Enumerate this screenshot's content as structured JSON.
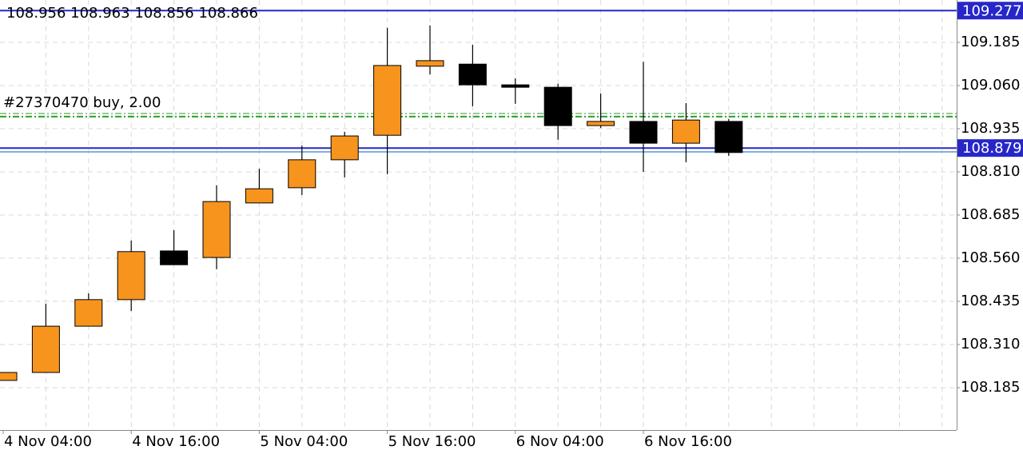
{
  "chart_data": {
    "type": "candlestick",
    "ohlc_label": "108.956 108.963 108.856 108.866",
    "categories": [
      "4 Nov 04:00",
      null,
      null,
      "4 Nov 16:00",
      null,
      null,
      "5 Nov 04:00",
      null,
      null,
      "5 Nov 16:00",
      null,
      null,
      "6 Nov 04:00",
      null,
      null,
      "6 Nov 16:00",
      null,
      null
    ],
    "open": [
      108.206,
      108.229,
      108.363,
      108.44,
      108.581,
      108.562,
      108.72,
      108.764,
      108.845,
      108.916,
      109.116,
      109.122,
      109.062,
      109.055,
      108.944,
      108.956,
      108.893,
      108.956
    ],
    "high": [
      108.229,
      108.428,
      108.458,
      108.611,
      108.641,
      108.771,
      108.819,
      108.886,
      108.926,
      109.227,
      109.234,
      109.178,
      109.081,
      109.065,
      109.037,
      109.129,
      109.009,
      108.963
    ],
    "low": [
      108.206,
      108.229,
      108.363,
      108.407,
      108.541,
      108.528,
      108.72,
      108.743,
      108.794,
      108.803,
      109.092,
      109.0,
      109.007,
      108.903,
      108.937,
      108.81,
      108.838,
      108.856
    ],
    "close": [
      108.229,
      108.363,
      108.44,
      108.579,
      108.541,
      108.724,
      108.761,
      108.845,
      108.914,
      109.118,
      109.132,
      109.062,
      109.055,
      108.944,
      108.956,
      108.893,
      108.96,
      108.866
    ],
    "up_color": "#f7941d",
    "down_color": "#000000",
    "ylim": [
      108.0623,
      109.3077
    ],
    "yticks": [
      108.185,
      {
        "value": 108.31,
        "label": "108.310"
      },
      108.435,
      {
        "value": 108.56,
        "label": "108.560"
      },
      108.685,
      {
        "value": 108.81,
        "label": "108.810"
      },
      108.935,
      {
        "value": 109.06,
        "label": "109.060"
      },
      109.185
    ],
    "grid": true,
    "levels": [
      {
        "value": 109.277,
        "color": "#2727c9",
        "labeled": true
      },
      {
        "value": 108.879,
        "color": "#2727c9",
        "labeled": true
      },
      {
        "value": 108.868,
        "color": "#7fb0e6",
        "labeled": false
      },
      {
        "value": 108.97,
        "color": "#2e9b2e",
        "labeled": false
      }
    ],
    "order": {
      "label": "#27370470 buy, 2.00",
      "value": 108.979,
      "color": "#2e9b2e"
    }
  }
}
